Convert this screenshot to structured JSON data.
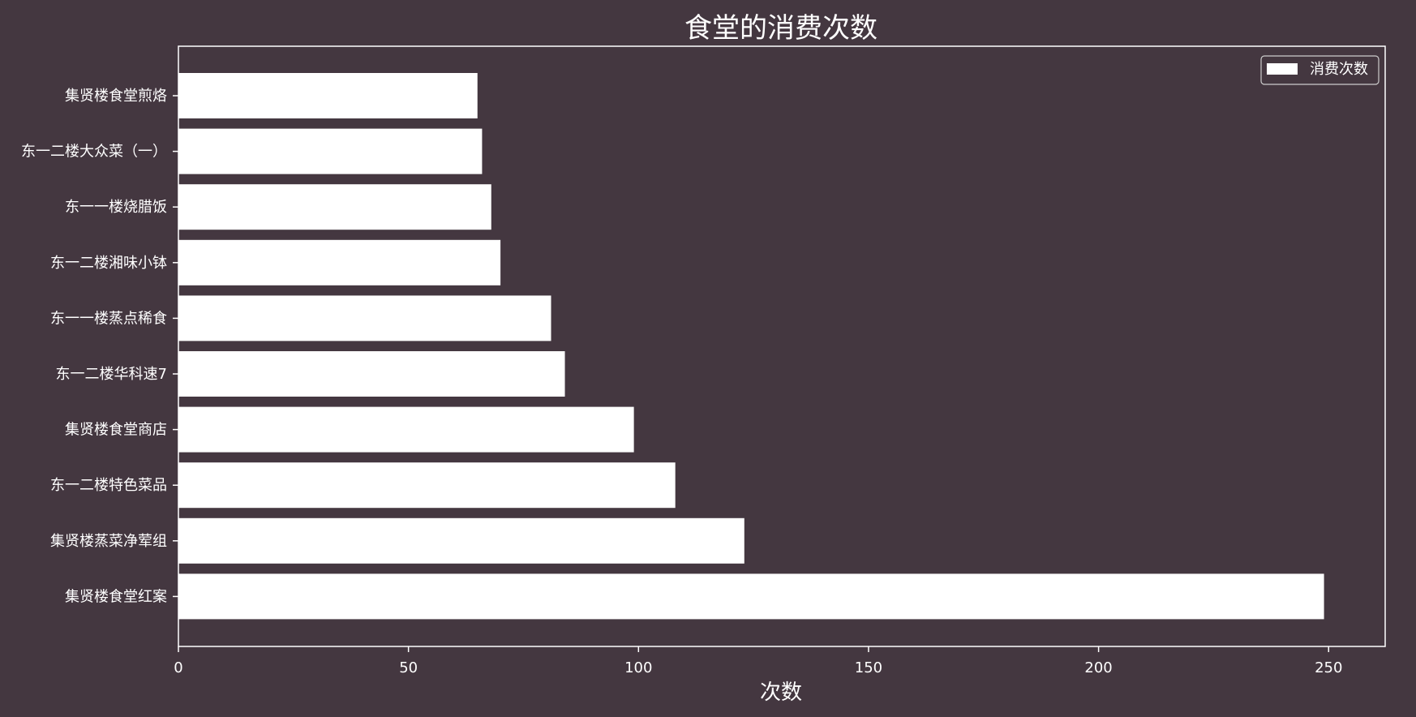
{
  "colors": {
    "background": "#443740",
    "bar": "#ffffff",
    "axis": "#ffffff",
    "text": "#ffffff"
  },
  "chart_data": {
    "type": "bar",
    "orientation": "horizontal",
    "title": "食堂的消费次数",
    "xlabel": "次数",
    "ylabel": "",
    "xlim": [
      0,
      262
    ],
    "xticks": [
      0,
      50,
      100,
      150,
      200,
      250
    ],
    "grid": false,
    "legend_position": "top-right",
    "categories": [
      "集贤楼食堂红案",
      "集贤楼蒸菜净荤组",
      "东一二楼特色菜品",
      "集贤楼食堂商店",
      "东一二楼华科速7",
      "东一一楼蒸点稀食",
      "东一二楼湘味小钵",
      "东一一楼烧腊饭",
      "东一二楼大众菜（一）",
      "集贤楼食堂煎烙"
    ],
    "series": [
      {
        "name": "消费次数",
        "values": [
          249,
          123,
          108,
          99,
          84,
          81,
          70,
          68,
          66,
          65
        ]
      }
    ]
  }
}
